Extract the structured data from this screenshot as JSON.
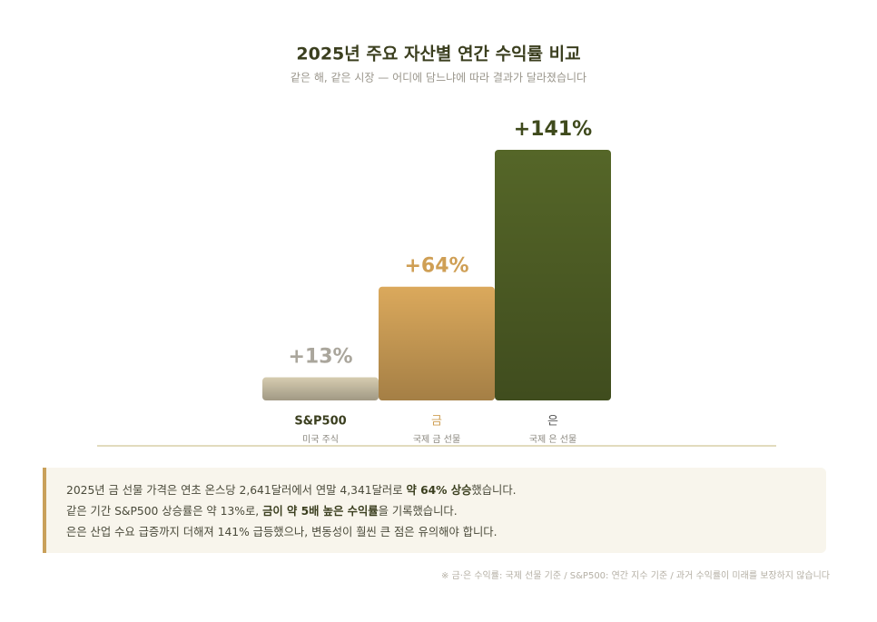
{
  "chart_data": {
    "type": "bar",
    "title": "2025년 주요 자산별 연간 수익률 비교",
    "subtitle": "같은 해, 같은 시장 — 어디에 담느냐에 따라 결과가 달라졌습니다",
    "categories": [
      "S&P500",
      "금",
      "은"
    ],
    "sublabels": [
      "미국 주식",
      "국제 금 선물",
      "국제 은 선물"
    ],
    "values": [
      13,
      64,
      141
    ],
    "value_labels": [
      "+13%",
      "+64%",
      "+141%"
    ],
    "colors": [
      "#d6ccb0",
      "#dba95c",
      "#556628"
    ],
    "label_colors": [
      "#aaa69c",
      "#cf9f55",
      "#3f4a1c"
    ],
    "category_colors": [
      "#3b3f1f",
      "#cf9f55",
      "#555555"
    ]
  },
  "note": {
    "lines": [
      [
        "2025년 금 선물 가격은 연초 온스당 2,641달러에서 연말 4,341달러로 ",
        "약 64% 상승",
        "했습니다."
      ],
      [
        "같은 기간 S&P500 상승률은 약 13%로, ",
        "금이 약 5배 높은 수익률",
        "을 기록했습니다."
      ],
      [
        "은은 산업 수요 급증까지 더해져 141% 급등했으나, 변동성이 훨씬 큰 점은 유의해야 합니다."
      ]
    ]
  },
  "footnote": "※ 금·은 수익률: 국제 선물 기준 / S&P500: 연간 지수 기준 / 과거 수익률이 미래를 보장하지 않습니다"
}
